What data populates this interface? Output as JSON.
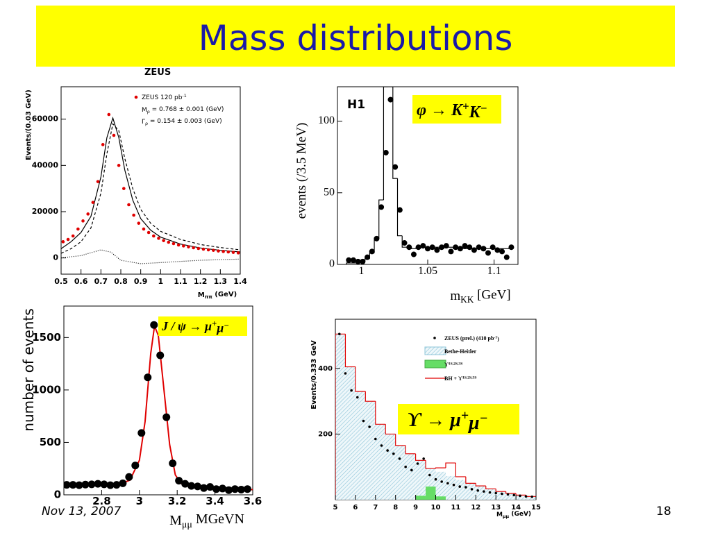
{
  "title": "Mass distributions",
  "footer": {
    "date": "Nov 13, 2007",
    "page": "18"
  },
  "chart_data": [
    {
      "type": "scatter",
      "heading": "ZEUS",
      "xlim": [
        0.5,
        1.4
      ],
      "ylim": [
        -7000,
        74000
      ],
      "xticks": [
        0.5,
        0.6,
        0.7,
        0.8,
        0.9,
        1,
        1.1,
        1.2,
        1.3,
        1.4
      ],
      "yticks": [
        0,
        20000,
        40000,
        60000
      ],
      "xlabel": [
        {
          "text": "M"
        },
        {
          "sub": "ππ"
        },
        {
          "text": " (GeV)"
        }
      ],
      "ylabel": "Events/(0.03 GeV)",
      "legend": [
        [
          {
            "text": "ZEUS 120 pb"
          },
          {
            "sup": "-1"
          }
        ],
        [
          {
            "text": "M"
          },
          {
            "sub": "ρ"
          },
          {
            "text": " = 0.768  ± 0.001 (GeV)"
          }
        ],
        [
          {
            "text": "Γ"
          },
          {
            "sub": "ρ"
          },
          {
            "text": " = 0.154   ± 0.003 (GeV)"
          }
        ]
      ],
      "series": [
        {
          "mode": "line",
          "color": "#000000",
          "x": [
            0.5,
            0.55,
            0.6,
            0.65,
            0.7,
            0.73,
            0.76,
            0.79,
            0.82,
            0.86,
            0.9,
            0.95,
            1.0,
            1.1,
            1.2,
            1.3,
            1.4
          ],
          "values": [
            4000,
            7000,
            11000,
            18000,
            35000,
            52000,
            60500,
            52000,
            38000,
            25000,
            17000,
            12000,
            9000,
            6000,
            4300,
            3300,
            2600
          ]
        },
        {
          "mode": "dashed",
          "color": "#000000",
          "x": [
            0.5,
            0.55,
            0.6,
            0.65,
            0.7,
            0.73,
            0.76,
            0.79,
            0.82,
            0.86,
            0.9,
            0.95,
            1.0,
            1.1,
            1.2,
            1.3,
            1.4
          ],
          "values": [
            2000,
            4000,
            7000,
            13000,
            28000,
            45000,
            58000,
            55000,
            43000,
            30000,
            21000,
            15000,
            11500,
            8000,
            5800,
            4500,
            3500
          ]
        },
        {
          "mode": "dotted",
          "color": "#000000",
          "x": [
            0.5,
            0.6,
            0.7,
            0.75,
            0.8,
            0.9,
            1.0,
            1.2,
            1.4
          ],
          "values": [
            0,
            1000,
            3500,
            2500,
            -1000,
            -2500,
            -2000,
            -1000,
            -500
          ]
        },
        {
          "mode": "markers",
          "color": "#e00000",
          "x": [
            0.51,
            0.535,
            0.56,
            0.585,
            0.61,
            0.635,
            0.66,
            0.685,
            0.71,
            0.74,
            0.765,
            0.79,
            0.815,
            0.84,
            0.865,
            0.89,
            0.915,
            0.94,
            0.965,
            0.99,
            1.015,
            1.04,
            1.065,
            1.09,
            1.115,
            1.14,
            1.165,
            1.19,
            1.215,
            1.24,
            1.265,
            1.29,
            1.315,
            1.34,
            1.365,
            1.39
          ],
          "values": [
            7000,
            8000,
            9500,
            12500,
            16000,
            19000,
            24000,
            33000,
            49000,
            62000,
            53000,
            40000,
            30000,
            23000,
            18500,
            15000,
            12500,
            11000,
            9500,
            8500,
            7500,
            6800,
            6200,
            5600,
            5200,
            4800,
            4400,
            4100,
            3800,
            3500,
            3300,
            3000,
            2800,
            2600,
            2400,
            2200
          ]
        }
      ]
    },
    {
      "type": "scatter",
      "heading": "H1",
      "xlim": [
        0.982,
        1.118
      ],
      "ylim": [
        0,
        124
      ],
      "xticks": [
        1,
        1.05,
        1.1
      ],
      "yticks": [
        0,
        50,
        100
      ],
      "xlabel": [
        {
          "text": "m"
        },
        {
          "sub": "KK"
        },
        {
          "text": " [GeV]"
        }
      ],
      "ylabel": "events (/3.5 MeV)",
      "annotation": [
        {
          "text": "φ → K"
        },
        {
          "sup": "+"
        },
        {
          "text": "K"
        },
        {
          "sup": "−"
        }
      ],
      "series": [
        {
          "mode": "step",
          "color": "#000000",
          "bins": [
            0.98875,
            0.99225,
            0.99575,
            0.99925,
            1.00275,
            1.00625,
            1.00975,
            1.01325,
            1.01675,
            1.02025,
            1.02375,
            1.02725,
            1.03075,
            1.03425,
            1.03775,
            1.04125,
            1.04475,
            1.04825,
            1.05175,
            1.05525,
            1.05875,
            1.06225,
            1.06575,
            1.06925,
            1.07275,
            1.07625,
            1.07975,
            1.08325,
            1.08675,
            1.09025,
            1.09375,
            1.09725,
            1.10075,
            1.10425,
            1.10775,
            1.11125,
            1.11475
          ],
          "values": [
            1,
            1,
            1,
            2,
            4,
            8,
            18,
            45,
            124,
            124,
            60,
            20,
            12,
            12,
            11,
            12,
            12,
            11,
            11,
            12,
            11,
            12,
            12,
            11,
            12,
            11,
            12,
            11,
            11,
            12,
            11,
            11,
            11,
            11,
            11,
            12
          ]
        },
        {
          "mode": "markers",
          "color": "#000000",
          "x": [
            0.9905,
            0.994,
            0.9975,
            1.001,
            1.0045,
            1.008,
            1.0115,
            1.015,
            1.0185,
            1.022,
            1.0255,
            1.029,
            1.0325,
            1.036,
            1.0395,
            1.043,
            1.0465,
            1.05,
            1.0535,
            1.057,
            1.0605,
            1.064,
            1.0675,
            1.071,
            1.0745,
            1.078,
            1.0815,
            1.085,
            1.0885,
            1.092,
            1.0955,
            1.099,
            1.1025,
            1.106,
            1.1095,
            1.113
          ],
          "values": [
            3,
            3,
            2,
            2,
            5,
            9,
            18,
            40,
            78,
            115,
            68,
            38,
            15,
            12,
            7,
            12,
            13,
            11,
            12,
            10,
            12,
            13,
            9,
            12,
            11,
            13,
            12,
            10,
            12,
            11,
            8,
            12,
            10,
            9,
            5,
            12
          ]
        }
      ]
    },
    {
      "type": "scatter",
      "xlim": [
        2.6,
        3.6
      ],
      "ylim": [
        0,
        1800
      ],
      "xticks": [
        2.8,
        3,
        3.2,
        3.4,
        3.6
      ],
      "yticks": [
        0,
        500,
        1000,
        1500
      ],
      "xlabel": [
        {
          "text": "M"
        },
        {
          "sub": "μμ"
        },
        {
          "text": " MGeVN"
        }
      ],
      "ylabel": "number of events",
      "annotation": [
        {
          "text": "J / ψ → μ"
        },
        {
          "sup": "+"
        },
        {
          "text": "μ"
        },
        {
          "sup": "−"
        }
      ],
      "series": [
        {
          "mode": "line",
          "color": "#e00000",
          "x": [
            2.6,
            2.8,
            2.9,
            2.95,
            3.0,
            3.03,
            3.06,
            3.08,
            3.1,
            3.13,
            3.16,
            3.19,
            3.22,
            3.26,
            3.3,
            3.4,
            3.5,
            3.6
          ],
          "values": [
            95,
            98,
            105,
            140,
            330,
            700,
            1350,
            1610,
            1520,
            1000,
            480,
            190,
            110,
            85,
            75,
            62,
            55,
            50
          ]
        },
        {
          "mode": "markers",
          "color": "#000000",
          "x": [
            2.615,
            2.648,
            2.681,
            2.714,
            2.747,
            2.78,
            2.813,
            2.846,
            2.879,
            2.912,
            2.945,
            2.978,
            3.011,
            3.044,
            3.077,
            3.11,
            3.143,
            3.176,
            3.209,
            3.242,
            3.275,
            3.308,
            3.341,
            3.374,
            3.407,
            3.44,
            3.473,
            3.506,
            3.539,
            3.572
          ],
          "values": [
            95,
            95,
            92,
            98,
            100,
            105,
            100,
            92,
            95,
            110,
            170,
            280,
            590,
            1120,
            1620,
            1330,
            740,
            300,
            135,
            105,
            85,
            80,
            65,
            75,
            55,
            60,
            45,
            55,
            50,
            55
          ]
        }
      ]
    },
    {
      "type": "scatter",
      "xlim": [
        5,
        15
      ],
      "ylim": [
        0,
        550
      ],
      "xticks": [
        5,
        6,
        7,
        8,
        9,
        10,
        11,
        12,
        13,
        14,
        15
      ],
      "yticks": [
        200,
        400
      ],
      "xlabel": [
        {
          "text": "M"
        },
        {
          "sub": "μμ"
        },
        {
          "text": " (GeV)"
        }
      ],
      "ylabel": "Events/0.333 GeV",
      "annotation": [
        {
          "text": "ϒ → μ"
        },
        {
          "sup": "+"
        },
        {
          "text": "μ"
        },
        {
          "sup": "−"
        }
      ],
      "legend": [
        [
          {
            "text": "ZEUS (prel.) (410 pb"
          },
          {
            "sup": "-1"
          },
          {
            "text": ")"
          }
        ],
        [
          {
            "text": "Bethe-Heitler"
          }
        ],
        [
          {
            "text": "ϒ"
          },
          {
            "sup": "1S,2S,3S"
          }
        ],
        [
          {
            "text": "BH + ϒ"
          },
          {
            "sup": "1S,2S,3S"
          }
        ]
      ],
      "series": [
        {
          "mode": "hist",
          "hatch": true,
          "color": "#8cc4d8",
          "bins": [
            5,
            5.5,
            6,
            6.5,
            7,
            7.5,
            8,
            8.5,
            9,
            9.5,
            10,
            10.5,
            11,
            11.5,
            12,
            12.5,
            13,
            13.5,
            14,
            14.5,
            15
          ],
          "values": [
            505,
            405,
            330,
            300,
            230,
            200,
            165,
            140,
            120,
            95,
            85,
            72,
            60,
            50,
            42,
            33,
            25,
            19,
            14,
            10
          ]
        },
        {
          "mode": "hist",
          "color": "#66dd66",
          "bins": [
            9,
            9.5,
            10,
            10.5
          ],
          "values": [
            12,
            40,
            10
          ]
        },
        {
          "mode": "step",
          "color": "#e00000",
          "bins": [
            5,
            5.5,
            6,
            6.5,
            7,
            7.5,
            8,
            8.5,
            9,
            9.5,
            10,
            10.5,
            11,
            11.5,
            12,
            12.5,
            13,
            13.5,
            14,
            14.5,
            15
          ],
          "values": [
            505,
            405,
            330,
            300,
            230,
            200,
            165,
            140,
            120,
            95,
            97,
            112,
            70,
            50,
            42,
            33,
            25,
            19,
            14,
            10
          ]
        },
        {
          "mode": "markers",
          "color": "#000000",
          "x": [
            5.2,
            5.5,
            5.8,
            6.1,
            6.4,
            6.7,
            7.0,
            7.3,
            7.6,
            7.9,
            8.2,
            8.5,
            8.8,
            9.1,
            9.4,
            9.7,
            10.0,
            10.3,
            10.6,
            10.9,
            11.2,
            11.5,
            11.8,
            12.1,
            12.4,
            12.7,
            13.0,
            13.3,
            13.6,
            13.9,
            14.2,
            14.5,
            14.8
          ],
          "values": [
            505,
            385,
            333,
            312,
            240,
            222,
            185,
            165,
            150,
            140,
            125,
            100,
            90,
            110,
            125,
            75,
            62,
            55,
            50,
            45,
            40,
            38,
            32,
            28,
            25,
            22,
            20,
            18,
            16,
            14,
            12,
            10,
            9
          ]
        }
      ]
    }
  ]
}
